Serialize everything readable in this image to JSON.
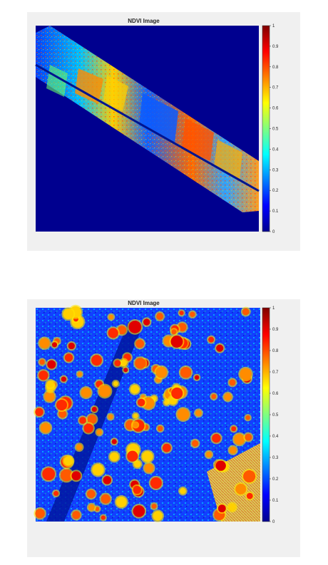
{
  "figures": [
    {
      "title": "NDVI Image",
      "colorbar": {
        "ticks": [
          "0",
          "0.1",
          "0.2",
          "0.3",
          "0.4",
          "0.5",
          "0.6",
          "0.7",
          "0.8",
          "0.9",
          "1"
        ],
        "min": 0,
        "max": 1,
        "colormap": "jet"
      }
    },
    {
      "title": "NDVI Image",
      "colorbar": {
        "ticks": [
          "0",
          "0.1",
          "0.2",
          "0.3",
          "0.4",
          "0.5",
          "0.6",
          "0.7",
          "0.8",
          "0.9",
          "1"
        ],
        "min": 0,
        "max": 1,
        "colormap": "jet"
      }
    }
  ],
  "colors": {
    "figure_background": "#f0f0f0",
    "low_value": "#00008f",
    "high_value": "#800000"
  }
}
